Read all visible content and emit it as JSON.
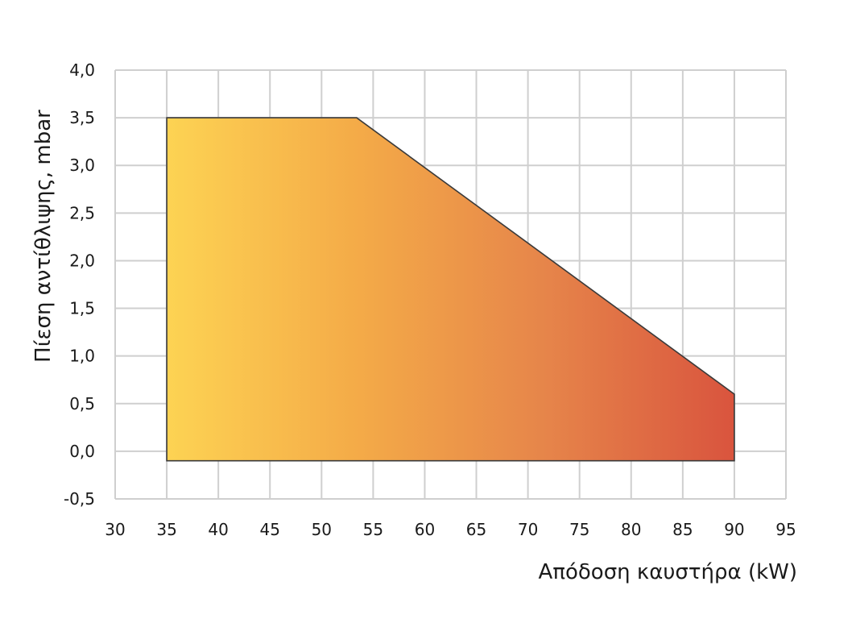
{
  "chart_data": {
    "type": "area",
    "title": "",
    "xlabel": "Απόδοση καυστήρα (kW)",
    "ylabel": "Πίεση αντίθλιψης, mbar",
    "xlim": [
      30,
      95
    ],
    "ylim": [
      -0.5,
      4.0
    ],
    "x_ticks": [
      30,
      35,
      40,
      45,
      50,
      55,
      60,
      65,
      70,
      75,
      80,
      85,
      90,
      95
    ],
    "x_tick_labels": [
      "30",
      "35",
      "40",
      "45",
      "50",
      "55",
      "60",
      "65",
      "70",
      "75",
      "80",
      "85",
      "90",
      "95"
    ],
    "y_ticks": [
      -0.5,
      0.0,
      0.5,
      1.0,
      1.5,
      2.0,
      2.5,
      3.0,
      3.5,
      4.0
    ],
    "y_tick_labels": [
      "-0,5",
      "0,0",
      "0,5",
      "1,0",
      "1,5",
      "2,0",
      "2,5",
      "3,0",
      "3,5",
      "4,0"
    ],
    "grid": true,
    "legend": "none",
    "series": [
      {
        "points": [
          {
            "x": 35,
            "y": -0.1
          },
          {
            "x": 35,
            "y": 3.5
          },
          {
            "x": 53.4,
            "y": 3.5
          },
          {
            "x": 90,
            "y": 0.6
          },
          {
            "x": 90,
            "y": -0.1
          }
        ],
        "fill_gradient": [
          "#fdd353",
          "#f4ab48",
          "#e6854a",
          "#d9543e"
        ],
        "stroke_color": "#3a3a3a"
      }
    ]
  }
}
